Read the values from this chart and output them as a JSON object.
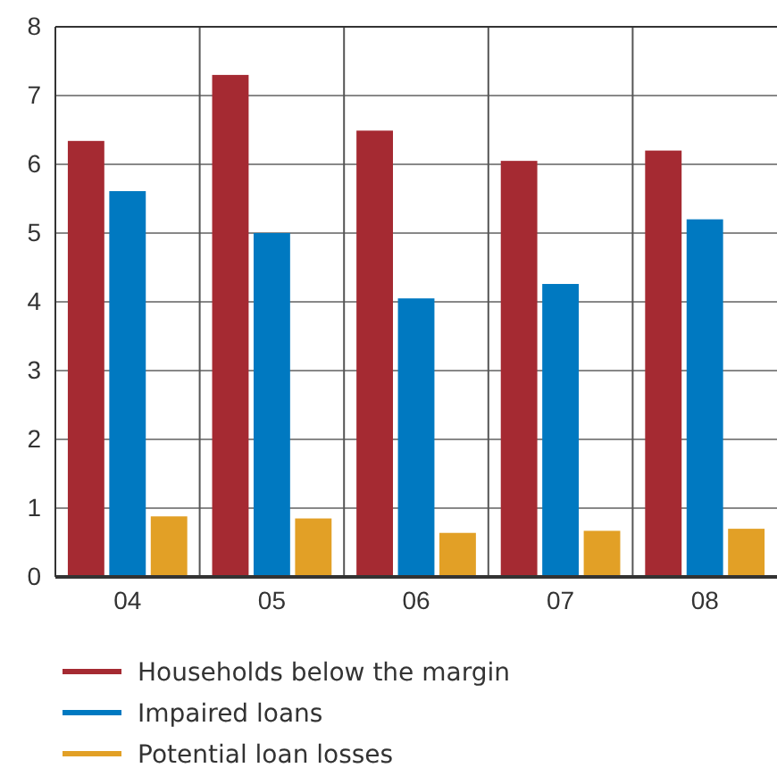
{
  "chart_data": {
    "type": "bar",
    "categories": [
      "04",
      "05",
      "06",
      "07",
      "08"
    ],
    "series": [
      {
        "name": "Households below the margin",
        "color": "#a52a32",
        "values": [
          6.34,
          7.3,
          6.49,
          6.05,
          6.2
        ]
      },
      {
        "name": "Impaired loans",
        "color": "#0079c1",
        "values": [
          5.61,
          5.0,
          4.05,
          4.26,
          5.2
        ]
      },
      {
        "name": "Potential loan losses",
        "color": "#e2a026",
        "values": [
          0.88,
          0.85,
          0.64,
          0.67,
          0.7
        ]
      }
    ],
    "ylim": [
      0,
      8
    ],
    "yticks": [
      0,
      1,
      2,
      3,
      4,
      5,
      6,
      7,
      8
    ],
    "grid": true,
    "legend": "bottom"
  }
}
